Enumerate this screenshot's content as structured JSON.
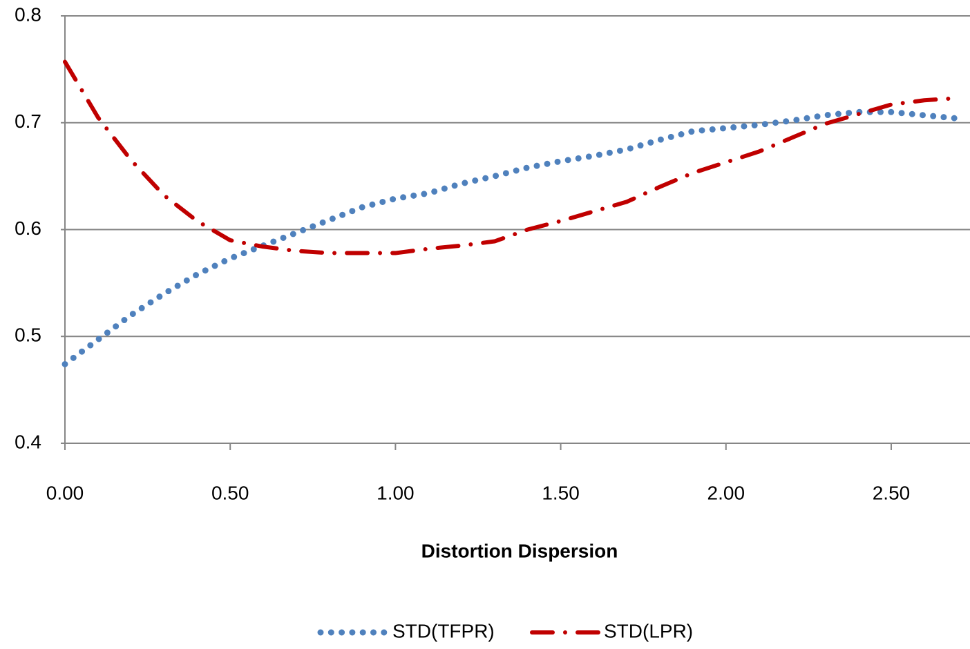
{
  "chart_data": {
    "type": "line",
    "x_label": "Distortion Dispersion",
    "x": [
      0,
      0.1,
      0.2,
      0.3,
      0.4,
      0.5,
      0.6,
      0.7,
      0.8,
      0.9,
      1.0,
      1.1,
      1.2,
      1.3,
      1.4,
      1.5,
      1.6,
      1.7,
      1.8,
      1.9,
      2.0,
      2.1,
      2.2,
      2.3,
      2.4,
      2.5,
      2.6,
      2.7
    ],
    "series": [
      {
        "name": "STD(TFPR)",
        "color": "#4f81bd",
        "style": "dotted",
        "values": [
          0.474,
          0.497,
          0.52,
          0.54,
          0.558,
          0.573,
          0.585,
          0.597,
          0.609,
          0.621,
          0.629,
          0.634,
          0.643,
          0.65,
          0.658,
          0.664,
          0.669,
          0.675,
          0.684,
          0.692,
          0.695,
          0.698,
          0.702,
          0.707,
          0.71,
          0.71,
          0.707,
          0.704
        ]
      },
      {
        "name": "STD(LPR)",
        "color": "#c00000",
        "style": "dashdot",
        "values": [
          0.757,
          0.705,
          0.665,
          0.632,
          0.608,
          0.59,
          0.584,
          0.58,
          0.578,
          0.578,
          0.578,
          0.582,
          0.585,
          0.589,
          0.6,
          0.608,
          0.617,
          0.626,
          0.64,
          0.653,
          0.663,
          0.673,
          0.686,
          0.699,
          0.708,
          0.717,
          0.721,
          0.723
        ]
      }
    ],
    "xlim": [
      0,
      2.73
    ],
    "xticks": [
      {
        "value": 0,
        "label": "0.00"
      },
      {
        "value": 0.5,
        "label": "0.50"
      },
      {
        "value": 1,
        "label": "1.00"
      },
      {
        "value": 1.5,
        "label": "1.50"
      },
      {
        "value": 2,
        "label": "2.00"
      },
      {
        "value": 2.5,
        "label": "2.50"
      }
    ],
    "ylim": [
      0.4,
      0.8
    ],
    "yticks": [
      0.4,
      0.5,
      0.6,
      0.7,
      0.8
    ],
    "grid": true,
    "legend": "bottom"
  }
}
